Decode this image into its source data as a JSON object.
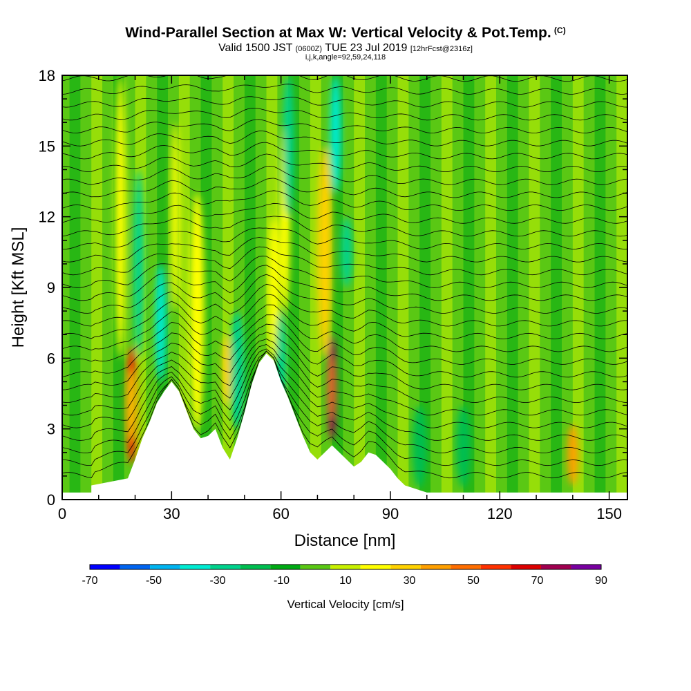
{
  "header": {
    "title": "Wind-Parallel Section at Max W: Vertical Velocity & Pot.Temp.",
    "copyright": "(C)",
    "valid_prefix": "Valid 1500 JST",
    "valid_z": "(0600Z)",
    "valid_date": "TUE 23 Jul 2019",
    "forecast": "[12hrFcst@2316z]",
    "params": "i,j,k,angle=92,59,24,118"
  },
  "chart_data": {
    "type": "heatmap",
    "title": "Wind-Parallel Section at Max W: Vertical Velocity & Pot.Temp.",
    "xlabel": "Distance [nm]",
    "ylabel": "Height [Kft MSL]",
    "xlim": [
      0,
      155
    ],
    "ylim": [
      0,
      18
    ],
    "x_ticks": [
      0,
      30,
      60,
      90,
      120,
      150
    ],
    "y_ticks": [
      0,
      3,
      6,
      9,
      12,
      15,
      18
    ],
    "colorbar": {
      "label": "Vertical Velocity [cm/s]",
      "tick_labels": [
        "-70",
        "-50",
        "-30",
        "-10",
        "10",
        "30",
        "50",
        "70",
        "90"
      ],
      "levels": [
        -70,
        -60,
        -50,
        -40,
        -30,
        -20,
        -10,
        0,
        10,
        20,
        30,
        40,
        50,
        60,
        70,
        80,
        90
      ],
      "colors": [
        "#0000ff",
        "#0064f0",
        "#00b4f0",
        "#00ebd2",
        "#00d28c",
        "#00be50",
        "#00aa14",
        "#5ac814",
        "#c8f000",
        "#ffff00",
        "#ffd200",
        "#ffa000",
        "#ff6e00",
        "#ff3200",
        "#dc0000",
        "#a00050",
        "#7800a0"
      ]
    },
    "terrain": {
      "x": [
        0,
        8,
        8,
        18,
        20,
        22,
        24,
        26,
        28,
        30,
        32,
        34,
        36,
        38,
        40,
        42,
        44,
        46,
        48,
        50,
        52,
        54,
        56,
        58,
        60,
        62,
        64,
        66,
        68,
        70,
        72,
        74,
        76,
        78,
        80,
        82,
        84,
        86,
        88,
        90,
        92,
        94,
        96,
        98,
        100,
        155
      ],
      "y": [
        0.3,
        0.3,
        0.6,
        0.9,
        1.7,
        2.6,
        3.3,
        4.1,
        4.6,
        5.0,
        4.6,
        3.8,
        3.0,
        2.6,
        2.7,
        3.0,
        2.2,
        1.7,
        2.6,
        3.7,
        4.9,
        5.8,
        6.2,
        5.9,
        5.0,
        4.3,
        3.5,
        2.7,
        2.0,
        1.7,
        2.0,
        2.3,
        2.0,
        1.7,
        1.4,
        1.6,
        2.0,
        1.9,
        1.6,
        1.3,
        0.9,
        0.6,
        0.5,
        0.4,
        0.3,
        0.3
      ]
    },
    "vertical_velocity_features": [
      {
        "x": 19,
        "y_bottom": 1.5,
        "y_top": 6.5,
        "width_nm": 3,
        "w": 60
      },
      {
        "x": 16,
        "y_bottom": 6,
        "y_top": 18,
        "width_nm": 3,
        "w": 20
      },
      {
        "x": 21,
        "y_bottom": 6,
        "y_top": 14,
        "width_nm": 3,
        "w": -25
      },
      {
        "x": 27,
        "y_bottom": 5,
        "y_top": 10,
        "width_nm": 3,
        "w": -40
      },
      {
        "x": 31,
        "y_bottom": 8,
        "y_top": 16,
        "width_nm": 2,
        "w": 20
      },
      {
        "x": 37,
        "y_bottom": 3,
        "y_top": 13,
        "width_nm": 4,
        "w": 25
      },
      {
        "x": 48,
        "y_bottom": 3,
        "y_top": 8,
        "width_nm": 4,
        "w": -25
      },
      {
        "x": 45,
        "y_bottom": 4,
        "y_top": 7,
        "width_nm": 2,
        "w": 30
      },
      {
        "x": 58,
        "y_bottom": 6,
        "y_top": 12,
        "width_nm": 3,
        "w": 25
      },
      {
        "x": 61,
        "y_bottom": 8,
        "y_top": 16,
        "width_nm": 3,
        "w": 20
      },
      {
        "x": 60,
        "y_bottom": 4,
        "y_top": 8,
        "width_nm": 3,
        "w": -25
      },
      {
        "x": 62,
        "y_bottom": 12,
        "y_top": 18,
        "width_nm": 3,
        "w": -30
      },
      {
        "x": 74,
        "y_bottom": 2.5,
        "y_top": 7,
        "width_nm": 2.5,
        "w": 80
      },
      {
        "x": 72,
        "y_bottom": 6,
        "y_top": 15,
        "width_nm": 4,
        "w": 30
      },
      {
        "x": 78,
        "y_bottom": 9,
        "y_top": 12,
        "width_nm": 3,
        "w": -30
      },
      {
        "x": 75,
        "y_bottom": 13,
        "y_top": 18,
        "width_nm": 3,
        "w": -40
      },
      {
        "x": 140,
        "y_bottom": 0.6,
        "y_top": 3.2,
        "width_nm": 3,
        "w": 40
      },
      {
        "x": 98,
        "y_bottom": 0.5,
        "y_top": 4,
        "width_nm": 4,
        "w": -15
      },
      {
        "x": 110,
        "y_bottom": 0.5,
        "y_top": 4,
        "width_nm": 4,
        "w": -15
      }
    ]
  }
}
